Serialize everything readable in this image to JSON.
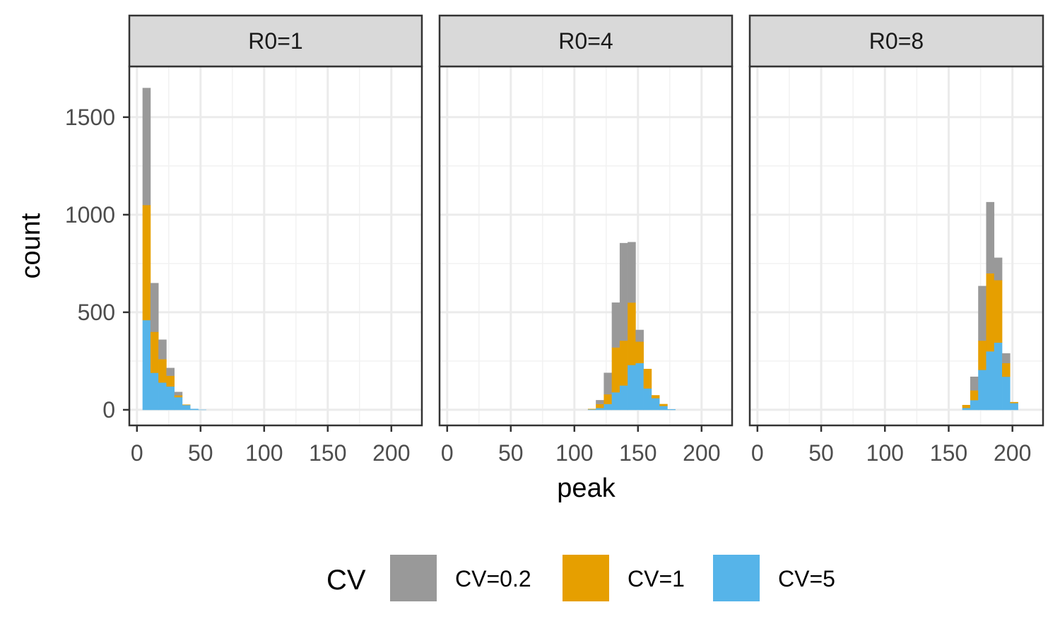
{
  "chart_data": {
    "type": "bar",
    "stacked": true,
    "x_axis_label": "peak",
    "y_axis_label": "count",
    "x_ticks": [
      0,
      50,
      100,
      150,
      200
    ],
    "y_ticks": [
      0,
      500,
      1000,
      1500
    ],
    "xlim": [
      -6,
      224
    ],
    "ylim": [
      -80,
      1760
    ],
    "bin_width": 6.25,
    "grid": true,
    "legend": {
      "title": "CV",
      "position": "bottom",
      "entries": [
        {
          "label": "CV=0.2",
          "color": "#999999"
        },
        {
          "label": "CV=1",
          "color": "#E69F00"
        },
        {
          "label": "CV=5",
          "color": "#56B4E9"
        }
      ]
    },
    "stack_order_bottom_to_top": [
      "CV=5",
      "CV=1",
      "CV=0.2"
    ],
    "facets": [
      {
        "label": "R0=1",
        "x": [
          7.5,
          13.75,
          20,
          26.25,
          32.5,
          38.75,
          45,
          51.25
        ],
        "series": [
          {
            "name": "CV=5",
            "values": [
              460,
              190,
              140,
              120,
              65,
              25,
              5,
              1
            ]
          },
          {
            "name": "CV=1",
            "values": [
              590,
              210,
              120,
              55,
              10,
              2,
              0,
              0
            ]
          },
          {
            "name": "CV=0.2",
            "values": [
              600,
              250,
              100,
              40,
              17,
              0,
              0,
              0
            ]
          }
        ]
      },
      {
        "label": "R0=4",
        "x": [
          113.75,
          120,
          126.25,
          132.5,
          138.75,
          145,
          151.25,
          157.5,
          163.75,
          170,
          176.25
        ],
        "series": [
          {
            "name": "CV=5",
            "values": [
              3,
              10,
              30,
              90,
              125,
              230,
              240,
              110,
              60,
              20,
              3
            ]
          },
          {
            "name": "CV=1",
            "values": [
              2,
              20,
              50,
              230,
              230,
              320,
              110,
              100,
              15,
              10,
              0
            ]
          },
          {
            "name": "CV=0.2",
            "values": [
              0,
              20,
              110,
              230,
              500,
              310,
              60,
              0,
              0,
              0,
              0
            ]
          }
        ]
      },
      {
        "label": "R0=8",
        "x": [
          163.75,
          170,
          176.25,
          182.5,
          188.75,
          195,
          201.25
        ],
        "series": [
          {
            "name": "CV=5",
            "values": [
              10,
              50,
              205,
              300,
              345,
              170,
              35
            ]
          },
          {
            "name": "CV=1",
            "values": [
              15,
              50,
              150,
              400,
              320,
              70,
              5
            ]
          },
          {
            "name": "CV=0.2",
            "values": [
              0,
              70,
              280,
              365,
              115,
              50,
              0
            ]
          }
        ]
      }
    ]
  }
}
